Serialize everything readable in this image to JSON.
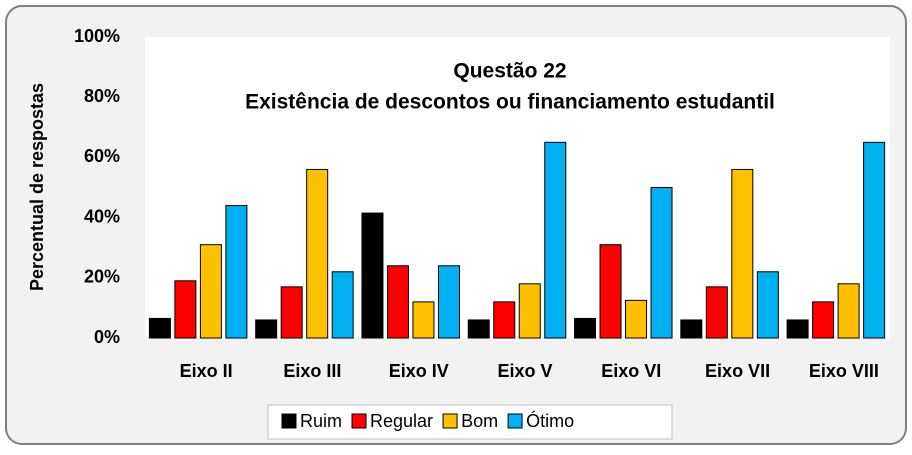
{
  "chart_data": {
    "type": "bar",
    "title": "Questão 22",
    "subtitle": "Existência de descontos ou financiamento estudantil",
    "y_label": "Percentual de respostas",
    "categories": [
      "Eixo II",
      "Eixo III",
      "Eixo IV",
      "Eixo V",
      "Eixo VI",
      "Eixo VII",
      "Eixo VIII"
    ],
    "series": [
      {
        "name": "Ruim",
        "color": "#000000",
        "values": [
          6.5,
          6,
          41.5,
          6,
          6.5,
          6,
          6
        ]
      },
      {
        "name": "Regular",
        "color": "#ff0000",
        "values": [
          19,
          17,
          24,
          12,
          31,
          17,
          12
        ]
      },
      {
        "name": "Bom",
        "color": "#ffc000",
        "values": [
          31,
          56,
          12,
          18,
          12.5,
          56,
          18
        ]
      },
      {
        "name": "Ótimo",
        "color": "#00b0f0",
        "values": [
          44,
          22,
          24,
          65,
          50,
          22,
          65
        ]
      }
    ],
    "ylim": [
      0,
      100
    ],
    "yticks": [
      {
        "value": 0,
        "label": "0%"
      },
      {
        "value": 20,
        "label": "20%"
      },
      {
        "value": 40,
        "label": "40%"
      },
      {
        "value": 60,
        "label": "60%"
      },
      {
        "value": 80,
        "label": "80%"
      },
      {
        "value": 100,
        "label": "100%"
      }
    ],
    "legend": "bottom"
  }
}
